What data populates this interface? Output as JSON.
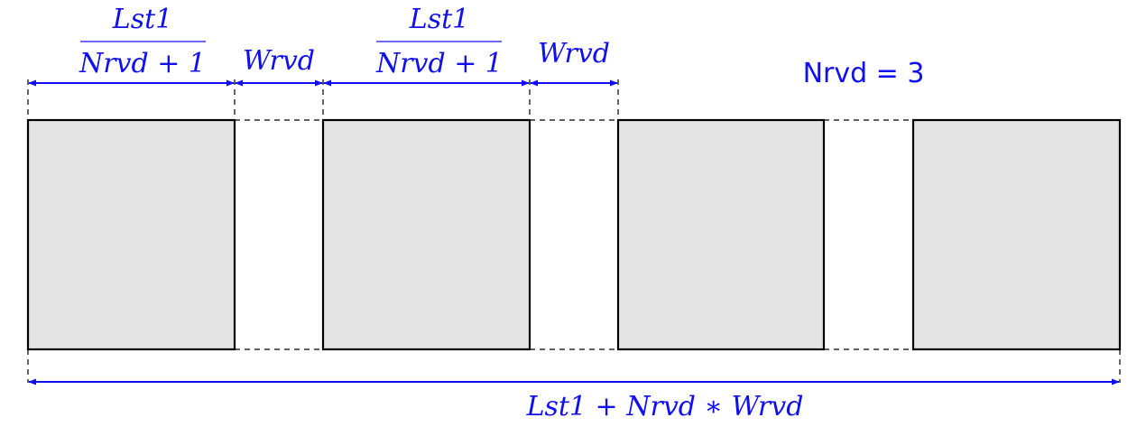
{
  "diagram": {
    "segment_fraction": {
      "numerator": "Lst1",
      "denominator": "Nrvd + 1"
    },
    "gap_label": "Wrvd",
    "count_label": "Nrvd = 3",
    "total_label": "Lst1 + Nrvd ∗ Wrvd",
    "segments": [
      "block-1",
      "block-2",
      "block-3",
      "block-4"
    ],
    "colors": {
      "dimension": "#1010ee",
      "segment_fill": "#e4e4e4",
      "outline": "#000000"
    }
  }
}
